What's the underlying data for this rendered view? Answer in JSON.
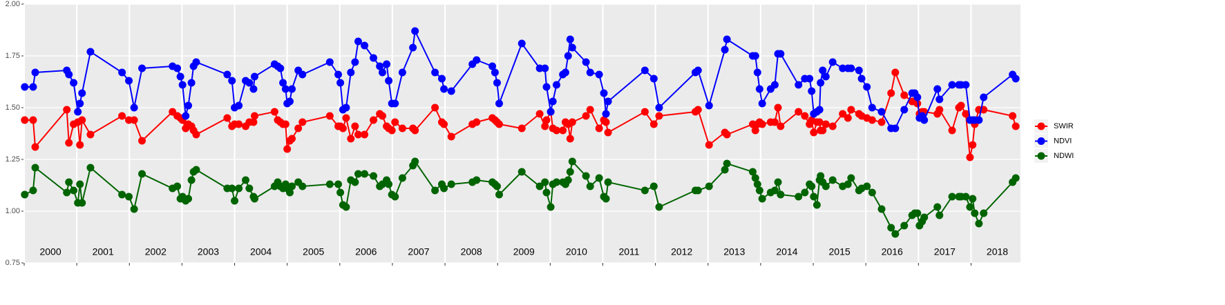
{
  "chart_data": {
    "type": "line",
    "x": [
      2000.01,
      2000.17,
      2000.21,
      2000.81,
      2000.85,
      2000.94,
      2001.02,
      2001.06,
      2001.1,
      2001.26,
      2001.86,
      2001.99,
      2002.09,
      2002.24,
      2002.82,
      2002.91,
      2002.97,
      2003.01,
      2003.07,
      2003.12,
      2003.18,
      2003.22,
      2003.27,
      2003.86,
      2003.95,
      2004.0,
      2004.08,
      2004.21,
      2004.28,
      2004.36,
      2004.38,
      2004.76,
      2004.82,
      2004.87,
      2004.92,
      2004.97,
      2005.0,
      2005.05,
      2005.09,
      2005.21,
      2005.29,
      2005.81,
      2005.97,
      2006.01,
      2006.06,
      2006.12,
      2006.21,
      2006.29,
      2006.35,
      2006.47,
      2006.64,
      2006.76,
      2006.81,
      2006.89,
      2006.93,
      2006.99,
      2007.05,
      2007.19,
      2007.39,
      2007.43,
      2007.81,
      2007.94,
      2007.98,
      2008.12,
      2008.52,
      2008.6,
      2008.9,
      2008.95,
      2008.99,
      2009.03,
      2009.46,
      2009.8,
      2009.9,
      2009.93,
      2010.01,
      2010.05,
      2010.12,
      2010.24,
      2010.29,
      2010.34,
      2010.38,
      2010.42,
      2010.68,
      2010.76,
      2010.93,
      2011.02,
      2011.06,
      2011.1,
      2011.8,
      2011.97,
      2012.07,
      2012.76,
      2012.81,
      2013.02,
      2013.32,
      2013.36,
      2013.85,
      2013.9,
      2013.94,
      2013.98,
      2014.03,
      2014.19,
      2014.27,
      2014.33,
      2014.38,
      2014.72,
      2014.84,
      2014.93,
      2014.97,
      2015.01,
      2015.07,
      2015.12,
      2015.14,
      2015.18,
      2015.24,
      2015.37,
      2015.56,
      2015.66,
      2015.72,
      2015.87,
      2015.92,
      2016.02,
      2016.12,
      2016.3,
      2016.48,
      2016.56,
      2016.73,
      2016.88,
      2016.93,
      2016.98,
      2017.02,
      2017.07,
      2017.11,
      2017.36,
      2017.4,
      2017.64,
      2017.77,
      2017.81,
      2017.9,
      2017.98,
      2018.03,
      2018.07,
      2018.15,
      2018.24,
      2018.79,
      2018.85
    ],
    "series": [
      {
        "name": "SWIR",
        "color": "#ff0000",
        "values": [
          1.44,
          1.44,
          1.31,
          1.49,
          1.33,
          1.42,
          1.43,
          1.32,
          1.44,
          1.37,
          1.46,
          1.44,
          1.44,
          1.34,
          1.48,
          1.46,
          1.45,
          1.44,
          1.4,
          1.42,
          1.41,
          1.39,
          1.37,
          1.45,
          1.41,
          1.42,
          1.42,
          1.41,
          1.43,
          1.43,
          1.46,
          1.48,
          1.44,
          1.43,
          1.42,
          1.42,
          1.3,
          1.34,
          1.35,
          1.4,
          1.43,
          1.46,
          1.41,
          1.41,
          1.4,
          1.45,
          1.35,
          1.41,
          1.37,
          1.37,
          1.44,
          1.47,
          1.46,
          1.41,
          1.4,
          1.39,
          1.43,
          1.4,
          1.4,
          1.39,
          1.5,
          1.43,
          1.42,
          1.36,
          1.42,
          1.43,
          1.45,
          1.44,
          1.43,
          1.42,
          1.4,
          1.47,
          1.41,
          1.44,
          1.48,
          1.4,
          1.39,
          1.39,
          1.43,
          1.42,
          1.35,
          1.43,
          1.46,
          1.49,
          1.4,
          1.44,
          1.43,
          1.38,
          1.48,
          1.42,
          1.46,
          1.48,
          1.49,
          1.32,
          1.38,
          1.37,
          1.42,
          1.39,
          1.42,
          1.43,
          1.42,
          1.43,
          1.43,
          1.5,
          1.41,
          1.48,
          1.46,
          1.42,
          1.44,
          1.38,
          1.43,
          1.43,
          1.39,
          1.39,
          1.42,
          1.41,
          1.47,
          1.45,
          1.49,
          1.47,
          1.46,
          1.45,
          1.44,
          1.43,
          1.57,
          1.67,
          1.56,
          1.53,
          1.53,
          1.52,
          1.47,
          1.48,
          1.48,
          1.47,
          1.49,
          1.39,
          1.5,
          1.51,
          1.47,
          1.26,
          1.32,
          1.42,
          1.49,
          1.49,
          1.46,
          1.41
        ]
      },
      {
        "name": "NDVI",
        "color": "#0000ff",
        "values": [
          1.6,
          1.6,
          1.67,
          1.68,
          1.66,
          1.62,
          1.48,
          1.52,
          1.57,
          1.77,
          1.67,
          1.63,
          1.5,
          1.69,
          1.7,
          1.69,
          1.65,
          1.61,
          1.46,
          1.51,
          1.62,
          1.7,
          1.72,
          1.66,
          1.63,
          1.5,
          1.51,
          1.63,
          1.62,
          1.59,
          1.65,
          1.71,
          1.7,
          1.69,
          1.62,
          1.59,
          1.52,
          1.53,
          1.59,
          1.68,
          1.66,
          1.72,
          1.66,
          1.62,
          1.49,
          1.5,
          1.67,
          1.72,
          1.82,
          1.8,
          1.74,
          1.7,
          1.67,
          1.71,
          1.63,
          1.52,
          1.52,
          1.67,
          1.79,
          1.87,
          1.67,
          1.64,
          1.59,
          1.58,
          1.71,
          1.73,
          1.7,
          1.67,
          1.62,
          1.52,
          1.81,
          1.69,
          1.69,
          1.6,
          1.48,
          1.53,
          1.61,
          1.66,
          1.67,
          1.75,
          1.83,
          1.79,
          1.72,
          1.67,
          1.66,
          1.57,
          1.47,
          1.53,
          1.68,
          1.64,
          1.5,
          1.67,
          1.68,
          1.51,
          1.78,
          1.83,
          1.75,
          1.75,
          1.67,
          1.59,
          1.52,
          1.59,
          1.61,
          1.76,
          1.76,
          1.61,
          1.64,
          1.64,
          1.58,
          1.47,
          1.48,
          1.49,
          1.62,
          1.68,
          1.65,
          1.72,
          1.69,
          1.69,
          1.69,
          1.68,
          1.64,
          1.6,
          1.5,
          1.48,
          1.4,
          1.4,
          1.49,
          1.57,
          1.57,
          1.55,
          1.45,
          1.46,
          1.44,
          1.59,
          1.54,
          1.61,
          1.61,
          1.61,
          1.61,
          1.44,
          1.44,
          1.44,
          1.44,
          1.55,
          1.66,
          1.64
        ]
      },
      {
        "name": "NDWI",
        "color": "#006400",
        "values": [
          1.08,
          1.1,
          1.21,
          1.09,
          1.14,
          1.1,
          1.04,
          1.13,
          1.04,
          1.21,
          1.08,
          1.07,
          1.01,
          1.18,
          1.11,
          1.12,
          1.06,
          1.07,
          1.05,
          1.06,
          1.15,
          1.19,
          1.2,
          1.11,
          1.11,
          1.05,
          1.11,
          1.15,
          1.11,
          1.07,
          1.06,
          1.12,
          1.14,
          1.12,
          1.11,
          1.13,
          1.11,
          1.09,
          1.12,
          1.14,
          1.12,
          1.13,
          1.13,
          1.09,
          1.03,
          1.02,
          1.15,
          1.14,
          1.18,
          1.18,
          1.17,
          1.12,
          1.13,
          1.15,
          1.13,
          1.08,
          1.07,
          1.16,
          1.22,
          1.24,
          1.1,
          1.13,
          1.11,
          1.13,
          1.14,
          1.15,
          1.14,
          1.13,
          1.12,
          1.08,
          1.19,
          1.12,
          1.14,
          1.09,
          1.02,
          1.13,
          1.14,
          1.14,
          1.13,
          1.15,
          1.19,
          1.24,
          1.17,
          1.12,
          1.16,
          1.07,
          1.06,
          1.14,
          1.1,
          1.12,
          1.02,
          1.1,
          1.1,
          1.12,
          1.2,
          1.23,
          1.19,
          1.16,
          1.13,
          1.1,
          1.06,
          1.09,
          1.1,
          1.14,
          1.08,
          1.07,
          1.09,
          1.13,
          1.12,
          1.07,
          1.03,
          1.15,
          1.17,
          1.14,
          1.12,
          1.15,
          1.12,
          1.13,
          1.16,
          1.1,
          1.11,
          1.12,
          1.09,
          1.01,
          0.92,
          0.89,
          0.93,
          0.98,
          0.99,
          0.99,
          0.93,
          0.95,
          0.97,
          1.02,
          0.98,
          1.07,
          1.07,
          1.07,
          1.07,
          1.02,
          1.06,
          0.99,
          0.94,
          0.99,
          1.14,
          1.16
        ]
      }
    ],
    "xlim": [
      2000,
      2018.94
    ],
    "xticks": [
      2000,
      2001,
      2002,
      2003,
      2004,
      2005,
      2006,
      2007,
      2008,
      2009,
      2010,
      2011,
      2012,
      2013,
      2014,
      2015,
      2016,
      2017,
      2018
    ],
    "ylim": [
      0.75,
      2.0
    ],
    "yticks": [
      0.75,
      {
        "value": 1.0,
        "label": "1.00"
      },
      1.25,
      {
        "value": 1.5,
        "label": "1.50"
      },
      1.75,
      {
        "value": 2.0,
        "label": "2.00"
      }
    ],
    "grid": true,
    "legend": "right"
  }
}
